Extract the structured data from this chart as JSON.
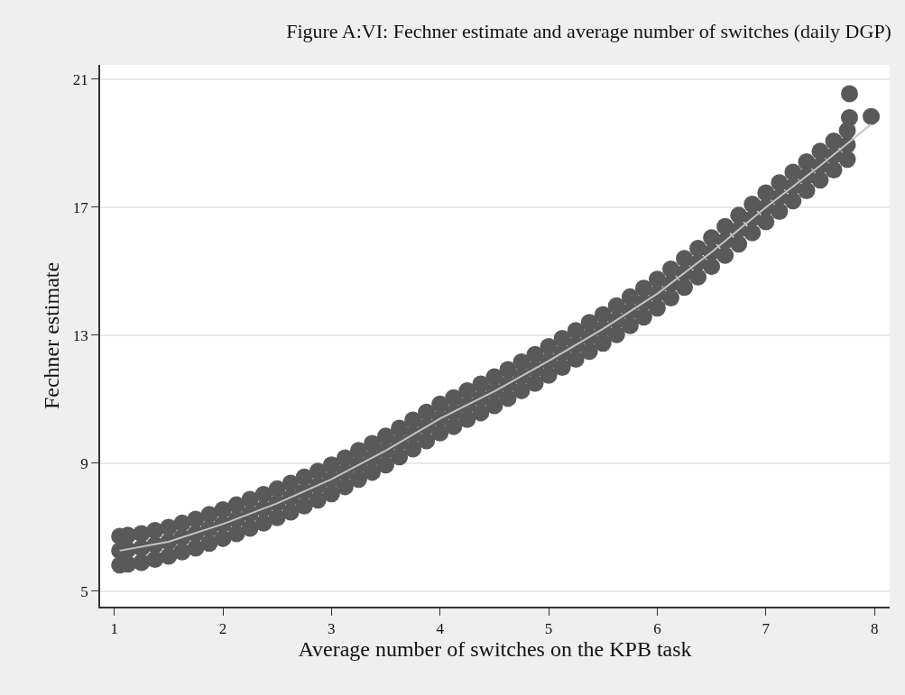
{
  "chart_data": {
    "type": "scatter",
    "title": "Figure A:VI: Fechner estimate and average number of switches (daily DGP)",
    "xlabel": "Average number of switches on the KPB task",
    "ylabel": "Fechner estimate",
    "xlim": [
      0.87,
      8.14
    ],
    "ylim": [
      4.52,
      21.45
    ],
    "xticks": [
      1,
      2,
      3,
      4,
      5,
      6,
      7,
      8
    ],
    "yticks": [
      5,
      9,
      13,
      17,
      21
    ],
    "grid": "y",
    "series": [
      {
        "marker": "circle",
        "color": "#595959",
        "x": [
          1.05,
          1.125,
          1.25,
          1.375,
          1.5,
          1.625,
          1.75,
          1.875,
          2.0,
          2.125,
          2.25,
          2.375,
          2.5,
          2.625,
          2.75,
          2.875,
          3.0,
          3.125,
          3.25,
          3.375,
          3.5,
          3.625,
          3.75,
          3.875,
          4.0,
          4.125,
          4.25,
          4.375,
          4.5,
          4.625,
          4.75,
          4.875,
          5.0,
          5.125,
          5.25,
          5.375,
          5.5,
          5.625,
          5.75,
          5.875,
          6.0,
          6.125,
          6.25,
          6.375,
          6.5,
          6.625,
          6.75,
          6.875,
          7.0,
          7.125,
          7.25,
          7.375,
          7.5,
          7.625,
          7.75,
          1.05,
          1.125,
          1.25,
          1.375,
          1.5,
          1.625,
          1.75,
          1.875,
          2.0,
          2.125,
          2.25,
          2.375,
          2.5,
          2.625,
          2.75,
          2.875,
          3.0,
          3.125,
          3.25,
          3.375,
          3.5,
          3.625,
          3.75,
          3.875,
          4.0,
          4.125,
          4.25,
          4.375,
          4.5,
          4.625,
          4.75,
          4.875,
          5.0,
          5.125,
          5.25,
          5.375,
          5.5,
          5.625,
          5.75,
          5.875,
          6.0,
          6.125,
          6.25,
          6.375,
          6.5,
          6.625,
          6.75,
          6.875,
          7.0,
          7.125,
          7.25,
          7.375,
          7.5,
          7.625,
          7.75,
          1.05,
          1.125,
          1.25,
          1.375,
          1.5,
          1.625,
          1.75,
          1.875,
          2.0,
          2.125,
          2.25,
          2.375,
          2.5,
          2.625,
          2.75,
          2.875,
          3.0,
          3.125,
          3.25,
          3.375,
          3.5,
          3.625,
          3.75,
          3.875,
          4.0,
          4.125,
          4.25,
          4.375,
          4.5,
          4.625,
          4.75,
          4.875,
          5.0,
          5.125,
          5.25,
          5.375,
          5.5,
          5.625,
          5.75,
          5.875,
          6.0,
          6.125,
          6.25,
          6.375,
          6.5,
          6.625,
          6.75,
          6.875,
          7.0,
          7.125,
          7.25,
          7.375,
          7.5,
          7.625,
          7.75,
          7.77,
          7.97,
          7.77
        ],
        "values": [
          6.72,
          6.75,
          6.8,
          6.9,
          7.0,
          7.13,
          7.25,
          7.4,
          7.55,
          7.7,
          7.87,
          8.03,
          8.2,
          8.38,
          8.57,
          8.75,
          8.95,
          9.17,
          9.4,
          9.62,
          9.85,
          10.1,
          10.35,
          10.6,
          10.85,
          11.05,
          11.27,
          11.48,
          11.7,
          11.93,
          12.17,
          12.4,
          12.65,
          12.9,
          13.15,
          13.4,
          13.65,
          13.92,
          14.2,
          14.47,
          14.75,
          15.07,
          15.4,
          15.72,
          16.05,
          16.4,
          16.75,
          17.1,
          17.45,
          17.77,
          18.1,
          18.42,
          18.75,
          19.07,
          19.4,
          6.27,
          6.3,
          6.35,
          6.45,
          6.55,
          6.68,
          6.8,
          6.95,
          7.1,
          7.25,
          7.42,
          7.58,
          7.75,
          7.93,
          8.12,
          8.3,
          8.5,
          8.72,
          8.95,
          9.17,
          9.4,
          9.65,
          9.9,
          10.15,
          10.4,
          10.6,
          10.82,
          11.03,
          11.25,
          11.48,
          11.72,
          11.95,
          12.2,
          12.45,
          12.7,
          12.95,
          13.2,
          13.47,
          13.75,
          14.02,
          14.3,
          14.62,
          14.95,
          15.27,
          15.6,
          15.95,
          16.3,
          16.65,
          17.0,
          17.32,
          17.65,
          17.97,
          18.3,
          18.62,
          18.95,
          5.82,
          5.85,
          5.9,
          6.0,
          6.1,
          6.23,
          6.35,
          6.5,
          6.65,
          6.8,
          6.97,
          7.13,
          7.3,
          7.48,
          7.67,
          7.85,
          8.05,
          8.27,
          8.5,
          8.72,
          8.95,
          9.2,
          9.45,
          9.7,
          9.95,
          10.15,
          10.37,
          10.58,
          10.8,
          11.03,
          11.27,
          11.5,
          11.75,
          12.0,
          12.25,
          12.5,
          12.75,
          13.02,
          13.3,
          13.57,
          13.85,
          14.17,
          14.5,
          14.82,
          15.15,
          15.5,
          15.85,
          16.2,
          16.55,
          16.87,
          17.2,
          17.52,
          17.85,
          18.17,
          18.5,
          20.55,
          19.84,
          19.8
        ]
      },
      {
        "type": "line",
        "line_style": "solid",
        "color": "#c4c4c4",
        "x": [
          1.05,
          1.5,
          2.0,
          2.5,
          3.0,
          3.5,
          4.0,
          4.5,
          5.0,
          5.5,
          6.0,
          6.5,
          7.0,
          7.5,
          7.97
        ],
        "values": [
          6.27,
          6.55,
          7.1,
          7.75,
          8.5,
          9.4,
          10.4,
          11.25,
          12.2,
          13.2,
          14.3,
          15.6,
          17.0,
          18.3,
          19.6
        ]
      }
    ]
  }
}
